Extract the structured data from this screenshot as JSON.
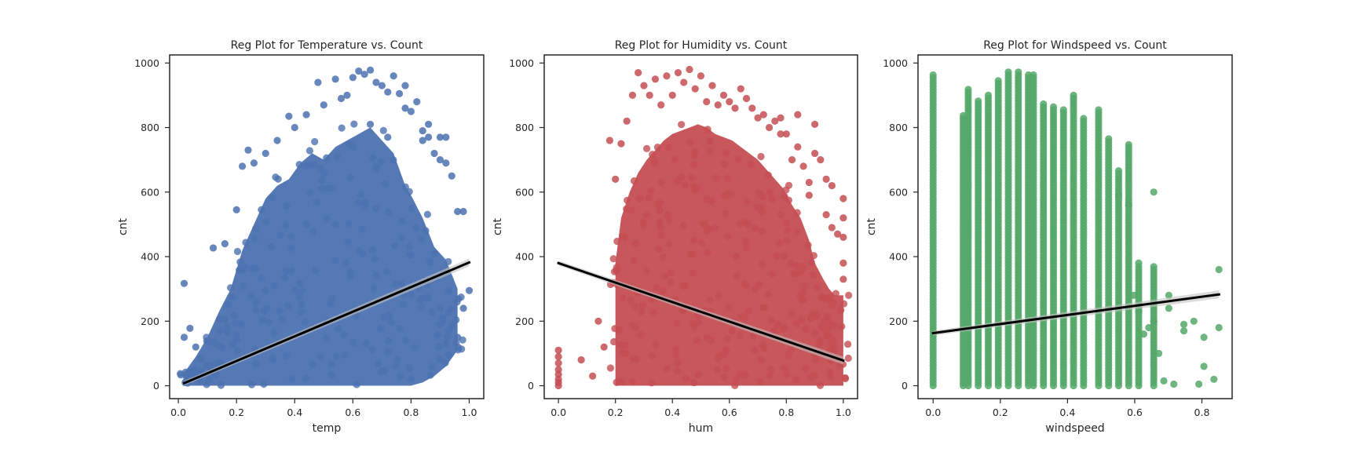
{
  "chart_data": [
    {
      "type": "scatter",
      "title": "Reg Plot for Temperature vs. Count",
      "xlabel": "temp",
      "ylabel": "cnt",
      "xlim": [
        -0.03,
        1.05
      ],
      "ylim": [
        -40,
        1025
      ],
      "xticks": [
        0.0,
        0.2,
        0.4,
        0.6,
        0.8,
        1.0
      ],
      "xtick_labels": [
        "0.0",
        "0.2",
        "0.4",
        "0.6",
        "0.8",
        "1.0"
      ],
      "yticks": [
        0,
        200,
        400,
        600,
        800,
        1000
      ],
      "ytick_labels": [
        "0",
        "200",
        "400",
        "600",
        "800",
        "1000"
      ],
      "point_color": "#4c72b0",
      "trend_line": {
        "x": [
          0.02,
          1.0
        ],
        "y": [
          8,
          382
        ],
        "color": "#000000"
      },
      "cloud_bands": [
        [
          0.02,
          0,
          40
        ],
        [
          0.06,
          0,
          90
        ],
        [
          0.1,
          0,
          150
        ],
        [
          0.14,
          0,
          230
        ],
        [
          0.18,
          0,
          300
        ],
        [
          0.22,
          0,
          420
        ],
        [
          0.26,
          0,
          500
        ],
        [
          0.3,
          0,
          580
        ],
        [
          0.34,
          0,
          620
        ],
        [
          0.38,
          0,
          640
        ],
        [
          0.42,
          0,
          690
        ],
        [
          0.46,
          0,
          720
        ],
        [
          0.5,
          0,
          700
        ],
        [
          0.54,
          0,
          740
        ],
        [
          0.58,
          0,
          760
        ],
        [
          0.62,
          0,
          780
        ],
        [
          0.66,
          0,
          800
        ],
        [
          0.7,
          0,
          760
        ],
        [
          0.74,
          0,
          720
        ],
        [
          0.78,
          0,
          620
        ],
        [
          0.8,
          0,
          590
        ],
        [
          0.84,
          10,
          520
        ],
        [
          0.88,
          30,
          430
        ],
        [
          0.92,
          60,
          390
        ],
        [
          0.96,
          110,
          300
        ]
      ],
      "points": [
        [
          0.02,
          317
        ],
        [
          0.02,
          150
        ],
        [
          0.04,
          178
        ],
        [
          0.06,
          120
        ],
        [
          0.12,
          427
        ],
        [
          0.16,
          440
        ],
        [
          0.2,
          545
        ],
        [
          0.22,
          680
        ],
        [
          0.24,
          730
        ],
        [
          0.26,
          690
        ],
        [
          0.3,
          720
        ],
        [
          0.34,
          760
        ],
        [
          0.38,
          835
        ],
        [
          0.4,
          800
        ],
        [
          0.44,
          840
        ],
        [
          0.48,
          940
        ],
        [
          0.5,
          870
        ],
        [
          0.54,
          950
        ],
        [
          0.56,
          890
        ],
        [
          0.58,
          900
        ],
        [
          0.6,
          955
        ],
        [
          0.62,
          975
        ],
        [
          0.64,
          965
        ],
        [
          0.66,
          978
        ],
        [
          0.68,
          940
        ],
        [
          0.7,
          930
        ],
        [
          0.72,
          910
        ],
        [
          0.74,
          960
        ],
        [
          0.76,
          905
        ],
        [
          0.78,
          930
        ],
        [
          0.8,
          850
        ],
        [
          0.82,
          880
        ],
        [
          0.84,
          790
        ],
        [
          0.86,
          770
        ],
        [
          0.88,
          720
        ],
        [
          0.9,
          700
        ],
        [
          0.92,
          690
        ],
        [
          0.94,
          650
        ],
        [
          0.96,
          540
        ],
        [
          0.98,
          540
        ],
        [
          1.0,
          295
        ],
        [
          0.98,
          240
        ],
        [
          0.96,
          150
        ],
        [
          0.92,
          130
        ],
        [
          0.9,
          240
        ],
        [
          0.88,
          410
        ],
        [
          0.84,
          760
        ],
        [
          0.78,
          860
        ],
        [
          0.92,
          770
        ],
        [
          0.9,
          770
        ],
        [
          0.86,
          810
        ],
        [
          0.6,
          740
        ],
        [
          0.66,
          810
        ],
        [
          0.72,
          770
        ]
      ]
    },
    {
      "type": "scatter",
      "title": "Reg Plot for Humidity vs. Count",
      "xlabel": "hum",
      "ylabel": "cnt",
      "xlim": [
        -0.05,
        1.05
      ],
      "ylim": [
        -40,
        1025
      ],
      "xticks": [
        0.0,
        0.2,
        0.4,
        0.6,
        0.8,
        1.0
      ],
      "xtick_labels": [
        "0.0",
        "0.2",
        "0.4",
        "0.6",
        "0.8",
        "1.0"
      ],
      "yticks": [
        0,
        200,
        400,
        600,
        800,
        1000
      ],
      "ytick_labels": [
        "0",
        "200",
        "400",
        "600",
        "800",
        "1000"
      ],
      "point_color": "#c44e52",
      "trend_line": {
        "x": [
          0.0,
          1.0
        ],
        "y": [
          380,
          78
        ],
        "color": "#000000"
      },
      "cloud_bands": [
        [
          0.2,
          0,
          380
        ],
        [
          0.22,
          0,
          520
        ],
        [
          0.25,
          0,
          600
        ],
        [
          0.28,
          0,
          660
        ],
        [
          0.31,
          0,
          700
        ],
        [
          0.34,
          0,
          730
        ],
        [
          0.37,
          0,
          760
        ],
        [
          0.4,
          0,
          780
        ],
        [
          0.43,
          0,
          790
        ],
        [
          0.46,
          0,
          800
        ],
        [
          0.49,
          0,
          810
        ],
        [
          0.52,
          0,
          800
        ],
        [
          0.55,
          0,
          780
        ],
        [
          0.58,
          0,
          770
        ],
        [
          0.61,
          0,
          760
        ],
        [
          0.64,
          0,
          740
        ],
        [
          0.67,
          0,
          720
        ],
        [
          0.7,
          0,
          700
        ],
        [
          0.73,
          0,
          670
        ],
        [
          0.76,
          0,
          640
        ],
        [
          0.79,
          0,
          610
        ],
        [
          0.82,
          0,
          560
        ],
        [
          0.85,
          0,
          520
        ],
        [
          0.88,
          0,
          450
        ],
        [
          0.9,
          0,
          380
        ],
        [
          0.93,
          0,
          330
        ],
        [
          0.95,
          0,
          300
        ],
        [
          0.97,
          0,
          280
        ],
        [
          1.0,
          0,
          280
        ]
      ],
      "points": [
        [
          0.0,
          110
        ],
        [
          0.0,
          90
        ],
        [
          0.0,
          70
        ],
        [
          0.0,
          50
        ],
        [
          0.0,
          35
        ],
        [
          0.0,
          20
        ],
        [
          0.0,
          10
        ],
        [
          0.0,
          0
        ],
        [
          0.08,
          80
        ],
        [
          0.12,
          30
        ],
        [
          0.14,
          200
        ],
        [
          0.16,
          120
        ],
        [
          0.18,
          760
        ],
        [
          0.2,
          640
        ],
        [
          0.22,
          750
        ],
        [
          0.24,
          820
        ],
        [
          0.26,
          900
        ],
        [
          0.28,
          970
        ],
        [
          0.3,
          930
        ],
        [
          0.32,
          900
        ],
        [
          0.34,
          950
        ],
        [
          0.36,
          870
        ],
        [
          0.38,
          960
        ],
        [
          0.4,
          900
        ],
        [
          0.42,
          970
        ],
        [
          0.44,
          940
        ],
        [
          0.46,
          980
        ],
        [
          0.48,
          920
        ],
        [
          0.5,
          960
        ],
        [
          0.52,
          880
        ],
        [
          0.54,
          930
        ],
        [
          0.56,
          870
        ],
        [
          0.58,
          900
        ],
        [
          0.6,
          880
        ],
        [
          0.62,
          860
        ],
        [
          0.64,
          920
        ],
        [
          0.66,
          890
        ],
        [
          0.68,
          860
        ],
        [
          0.7,
          830
        ],
        [
          0.72,
          840
        ],
        [
          0.74,
          800
        ],
        [
          0.76,
          820
        ],
        [
          0.78,
          830
        ],
        [
          0.8,
          780
        ],
        [
          0.82,
          700
        ],
        [
          0.84,
          740
        ],
        [
          0.86,
          680
        ],
        [
          0.88,
          630
        ],
        [
          0.9,
          720
        ],
        [
          0.92,
          700
        ],
        [
          0.94,
          530
        ],
        [
          0.96,
          490
        ],
        [
          0.98,
          470
        ],
        [
          1.0,
          580
        ],
        [
          1.0,
          520
        ],
        [
          1.0,
          460
        ],
        [
          1.0,
          380
        ],
        [
          1.0,
          330
        ],
        [
          0.96,
          620
        ],
        [
          0.94,
          640
        ],
        [
          0.88,
          590
        ],
        [
          0.9,
          810
        ],
        [
          0.84,
          840
        ],
        [
          0.78,
          780
        ]
      ]
    },
    {
      "type": "scatter",
      "title": "Reg Plot for Windspeed vs. Count",
      "xlabel": "windspeed",
      "ylabel": "cnt",
      "xlim": [
        -0.045,
        0.89
      ],
      "ylim": [
        -40,
        1025
      ],
      "xticks": [
        0.0,
        0.2,
        0.4,
        0.6,
        0.8
      ],
      "xtick_labels": [
        "0.0",
        "0.2",
        "0.4",
        "0.6",
        "0.8"
      ],
      "yticks": [
        0,
        200,
        400,
        600,
        800,
        1000
      ],
      "ytick_labels": [
        "0",
        "200",
        "400",
        "600",
        "800",
        "1000"
      ],
      "point_color": "#55a868",
      "trend_line": {
        "x": [
          0.0,
          0.851
        ],
        "y": [
          163,
          283
        ],
        "color": "#000000"
      },
      "columns": [
        [
          0.0,
          970
        ],
        [
          0.0896,
          840
        ],
        [
          0.1045,
          920
        ],
        [
          0.1343,
          890
        ],
        [
          0.1642,
          900
        ],
        [
          0.194,
          950
        ],
        [
          0.2239,
          975
        ],
        [
          0.2537,
          975
        ],
        [
          0.2836,
          965
        ],
        [
          0.2985,
          965
        ],
        [
          0.3284,
          880
        ],
        [
          0.3582,
          870
        ],
        [
          0.3881,
          860
        ],
        [
          0.4179,
          900
        ],
        [
          0.4478,
          830
        ],
        [
          0.4925,
          860
        ],
        [
          0.5224,
          770
        ],
        [
          0.5522,
          670
        ],
        [
          0.5821,
          750
        ],
        [
          0.6119,
          370
        ],
        [
          0.6567,
          370
        ]
      ],
      "points": [
        [
          0.6567,
          600
        ],
        [
          0.5821,
          560
        ],
        [
          0.5522,
          590
        ],
        [
          0.6119,
          380
        ],
        [
          0.7015,
          240
        ],
        [
          0.7015,
          280
        ],
        [
          0.7463,
          190
        ],
        [
          0.7463,
          170
        ],
        [
          0.7761,
          200
        ],
        [
          0.806,
          150
        ],
        [
          0.806,
          60
        ],
        [
          0.8358,
          20
        ],
        [
          0.8507,
          360
        ],
        [
          0.8507,
          180
        ],
        [
          0.791,
          5
        ],
        [
          0.7164,
          5
        ],
        [
          0.6866,
          15
        ],
        [
          0.6716,
          100
        ],
        [
          0.6567,
          200
        ],
        [
          0.6269,
          160
        ],
        [
          0.6418,
          180
        ],
        [
          0.6119,
          230
        ],
        [
          0.597,
          280
        ]
      ]
    }
  ]
}
